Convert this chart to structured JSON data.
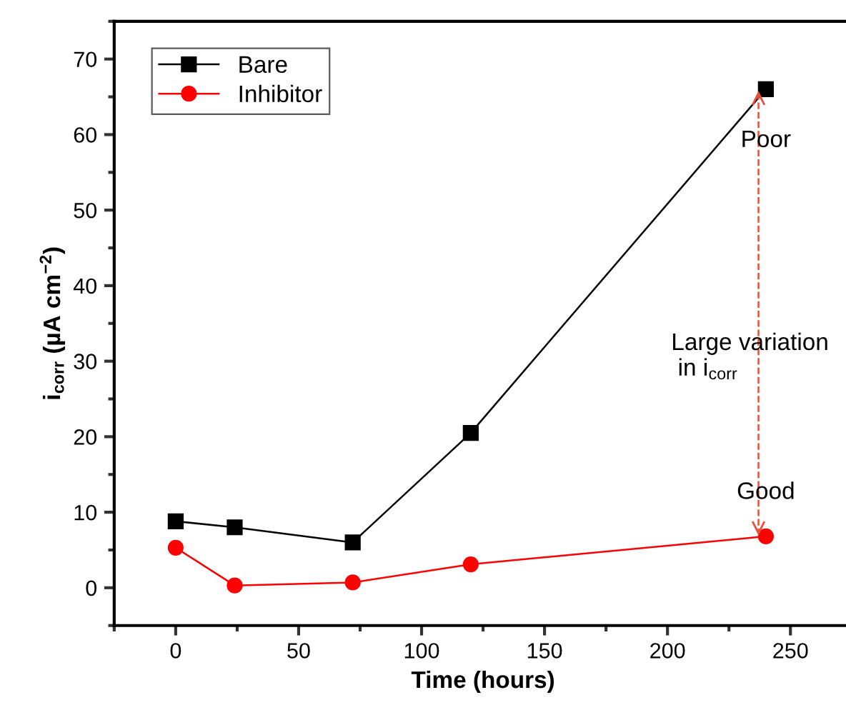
{
  "chart_data": {
    "type": "line",
    "xlabel": "Time (hours)",
    "ylabel": "i$_{corr}$ (µA cm$^{−2}$)",
    "x": [
      0,
      24,
      72,
      120,
      240
    ],
    "series": [
      {
        "name": "Bare",
        "color": "#000000",
        "marker": "square",
        "values": [
          8.8,
          8.0,
          6.0,
          20.5,
          66.0
        ]
      },
      {
        "name": "Inhibitor",
        "color": "#ff0000",
        "marker": "circle",
        "values": [
          5.3,
          0.3,
          0.7,
          3.1,
          6.8
        ]
      },
      {
        "type": "line",
        "color": "#e8503a",
        "marker": "none",
        "line_style": "dashed",
        "x": [
          237,
          237
        ],
        "values": [
          65.5,
          7.2
        ]
      }
    ],
    "xlim": [
      -25,
      275
    ],
    "xticks": [
      0,
      50,
      100,
      150,
      200,
      250
    ],
    "ylim": [
      -5,
      75
    ],
    "yticks": [
      0,
      10,
      20,
      30,
      40,
      50,
      60,
      70
    ],
    "legend": "top left",
    "grid": false,
    "line_style": "solid",
    "annotations": [
      {
        "text": "Poor",
        "x": 240,
        "y": 66.0
      },
      {
        "text": "Good",
        "x": 240,
        "y": 6.8
      },
      "Large variation\n in i$_{corr}$"
    ]
  }
}
